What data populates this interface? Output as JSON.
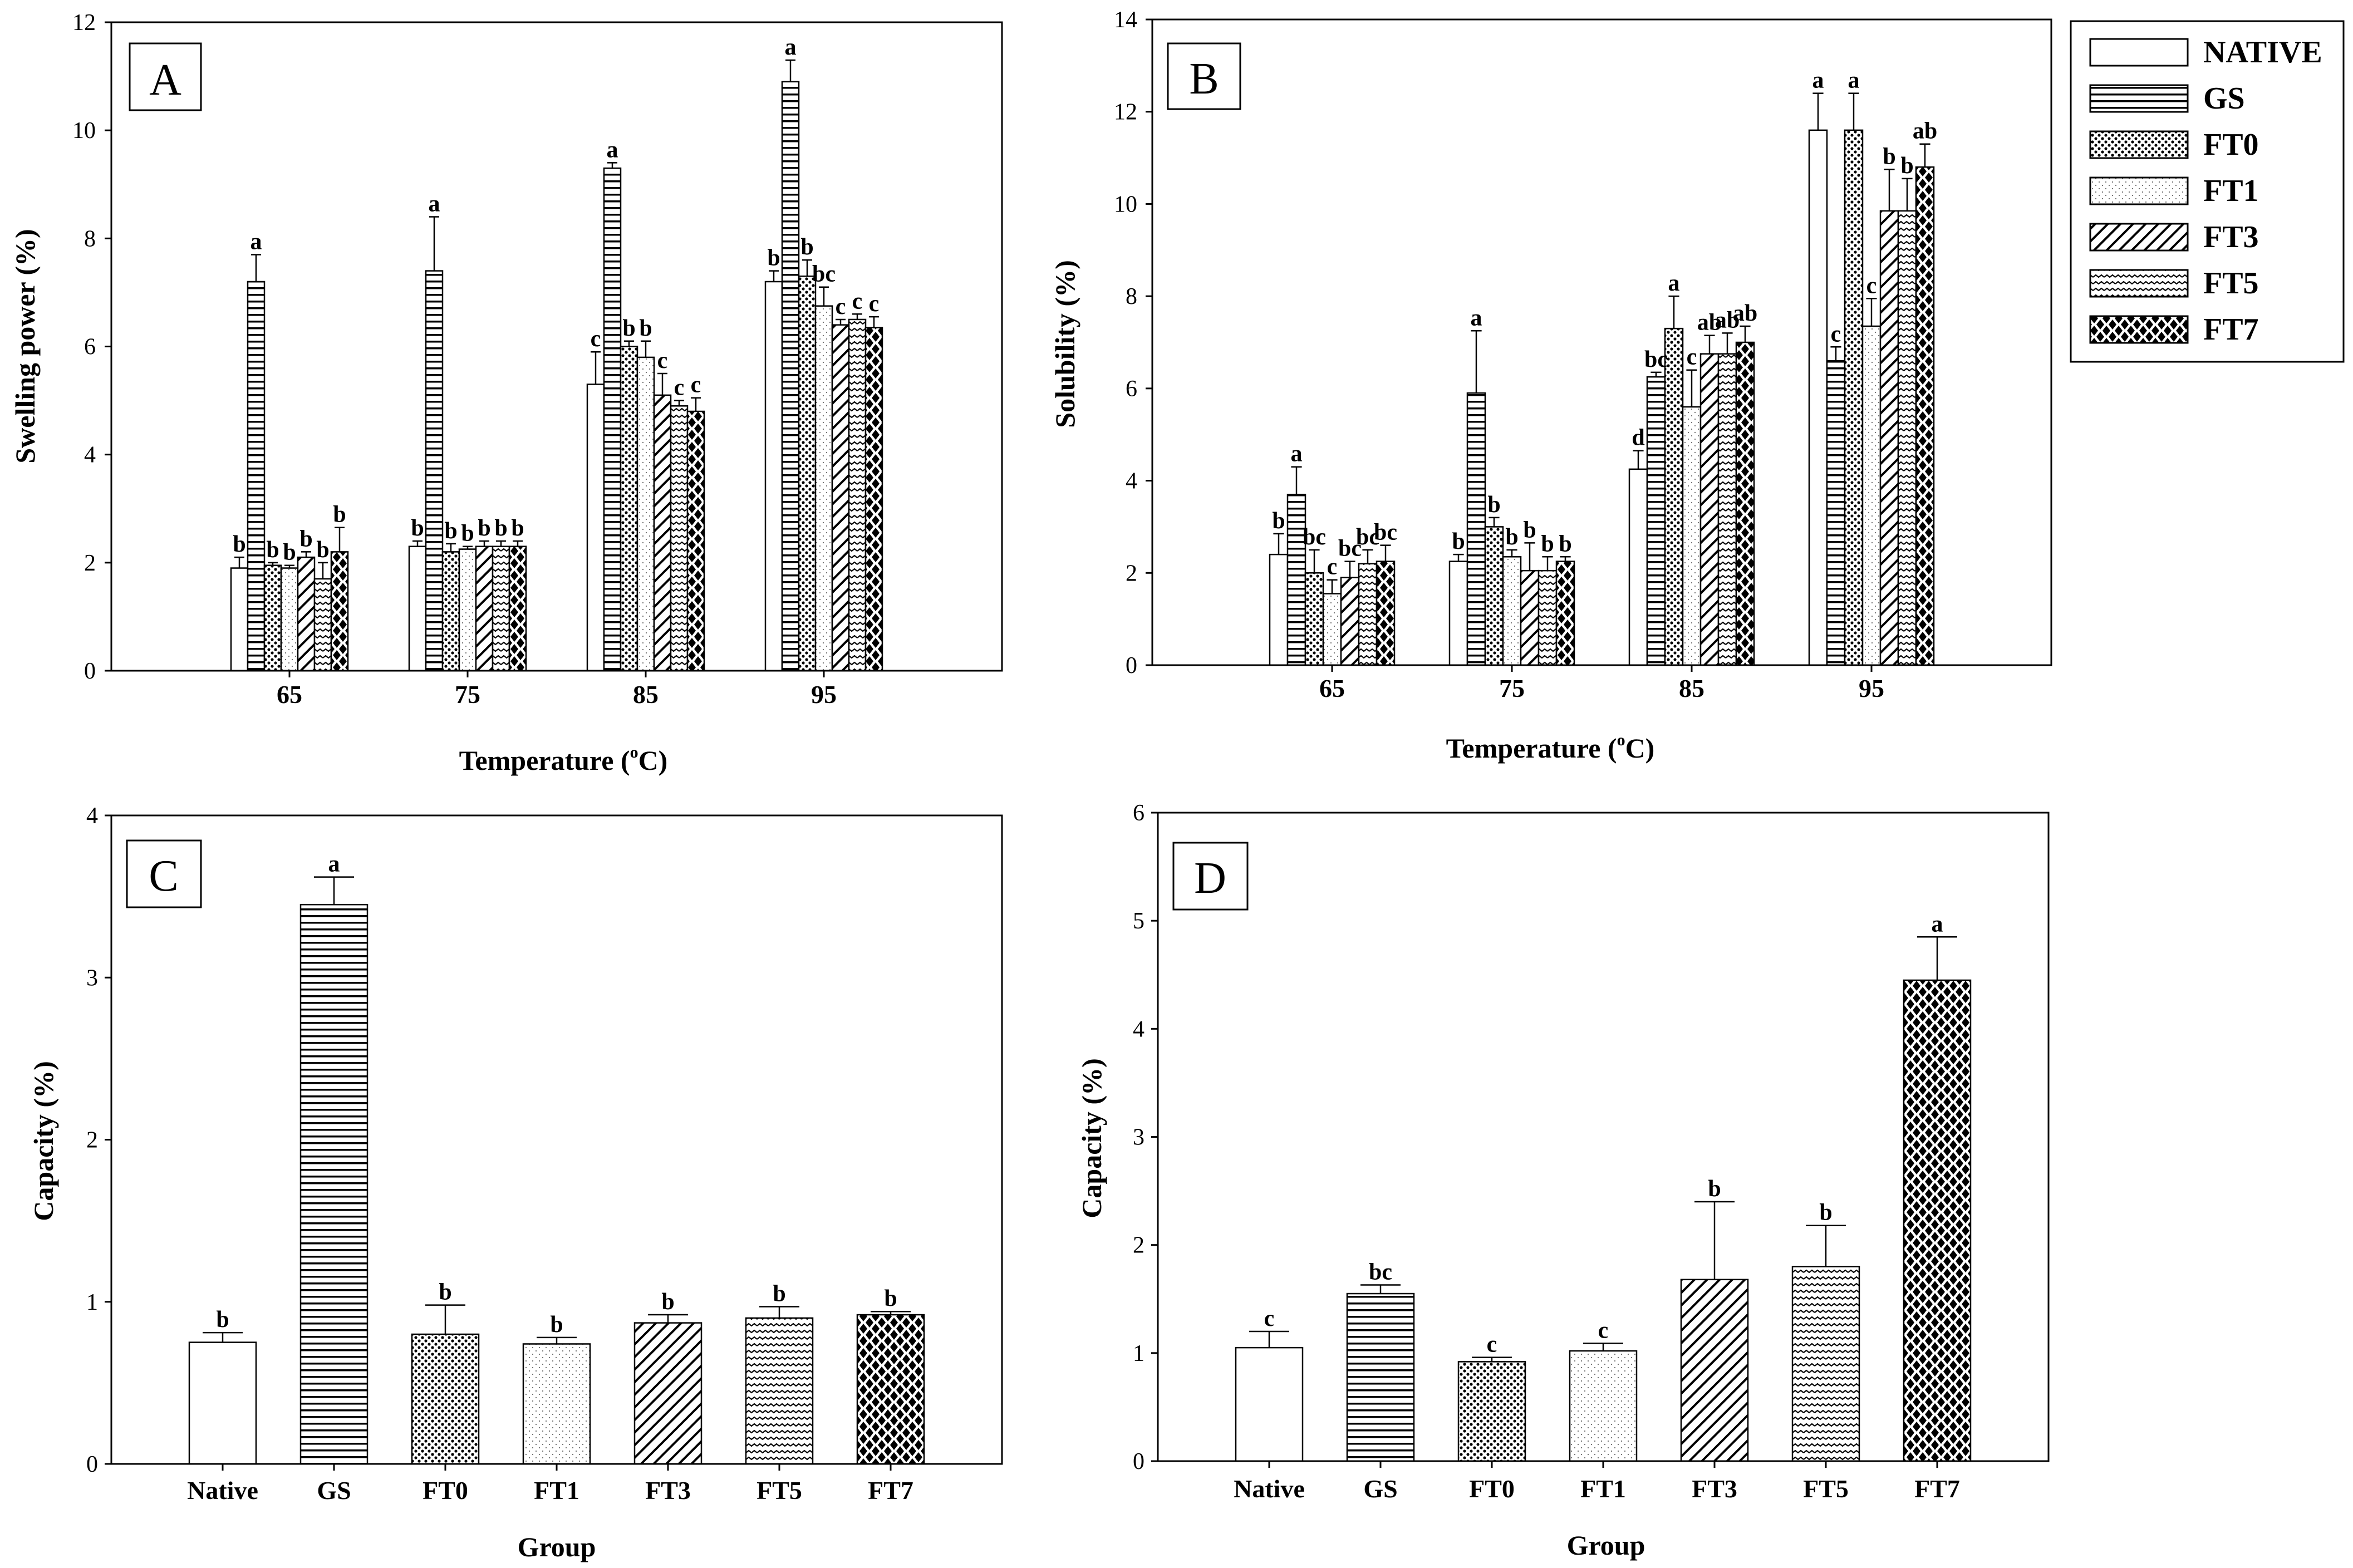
{
  "series": [
    "NATIVE",
    "GS",
    "FT0",
    "FT1",
    "FT3",
    "FT5",
    "FT7"
  ],
  "patterns": [
    "pat-native",
    "pat-gs",
    "pat-ft0",
    "pat-ft1",
    "pat-ft3",
    "pat-ft5",
    "pat-ft7"
  ],
  "colors": {
    "ink": "#000000",
    "background": "#ffffff"
  },
  "chart_data": [
    {
      "panel": "A",
      "type": "bar",
      "title": "",
      "xlabel": "Temperature (°C)",
      "xlabel_main": "Temperature (",
      "xlabel_sup": "o",
      "xlabel_end": "C)",
      "ylabel": "Swelling power (%)",
      "ylim": [
        0,
        12
      ],
      "yticks": [
        "0",
        "2",
        "4",
        "6",
        "8",
        "10",
        "12"
      ],
      "xlim": [
        55,
        105
      ],
      "categories": [
        "65",
        "75",
        "85",
        "95"
      ],
      "x": [
        65,
        75,
        85,
        95
      ],
      "series": [
        {
          "name": "NATIVE",
          "values": [
            1.9,
            2.3,
            5.3,
            7.2
          ],
          "errors": [
            0.2,
            0.1,
            0.6,
            0.2
          ],
          "labels": [
            "b",
            "b",
            "c",
            "b"
          ]
        },
        {
          "name": "GS",
          "values": [
            7.2,
            7.4,
            9.3,
            10.9
          ],
          "errors": [
            0.5,
            1.0,
            0.1,
            0.4
          ],
          "labels": [
            "a",
            "a",
            "a",
            "a"
          ]
        },
        {
          "name": "FT0",
          "values": [
            1.95,
            2.2,
            6.0,
            7.3
          ],
          "errors": [
            0.05,
            0.15,
            0.1,
            0.3
          ],
          "labels": [
            "b",
            "b",
            "b",
            "b"
          ]
        },
        {
          "name": "FT1",
          "values": [
            1.9,
            2.25,
            5.8,
            6.75
          ],
          "errors": [
            0.05,
            0.05,
            0.3,
            0.35
          ],
          "labels": [
            "b",
            "b",
            "b",
            "bc"
          ]
        },
        {
          "name": "FT3",
          "values": [
            2.1,
            2.3,
            5.1,
            6.4
          ],
          "errors": [
            0.1,
            0.1,
            0.4,
            0.1
          ],
          "labels": [
            "b",
            "b",
            "c",
            "c"
          ]
        },
        {
          "name": "FT5",
          "values": [
            1.7,
            2.3,
            4.9,
            6.5
          ],
          "errors": [
            0.3,
            0.1,
            0.1,
            0.1
          ],
          "labels": [
            "b",
            "b",
            "c",
            "c"
          ]
        },
        {
          "name": "FT7",
          "values": [
            2.2,
            2.3,
            4.8,
            6.35
          ],
          "errors": [
            0.45,
            0.1,
            0.25,
            0.2
          ],
          "labels": [
            "b",
            "b",
            "c",
            "c"
          ]
        }
      ]
    },
    {
      "panel": "B",
      "type": "bar",
      "title": "",
      "xlabel": "Temperature (°C)",
      "xlabel_main": "Temperature (",
      "xlabel_sup": "o",
      "xlabel_end": "C)",
      "ylabel": "Solubility (%)",
      "ylim": [
        0,
        14
      ],
      "yticks": [
        "0",
        "2",
        "4",
        "6",
        "8",
        "10",
        "12",
        "14"
      ],
      "xlim": [
        55,
        105
      ],
      "categories": [
        "65",
        "75",
        "85",
        "95"
      ],
      "x": [
        65,
        75,
        85,
        95
      ],
      "series": [
        {
          "name": "NATIVE",
          "values": [
            2.4,
            2.25,
            4.25,
            11.6
          ],
          "errors": [
            0.45,
            0.15,
            0.4,
            0.8
          ],
          "labels": [
            "b",
            "b",
            "d",
            "a"
          ]
        },
        {
          "name": "GS",
          "values": [
            3.7,
            5.9,
            6.25,
            6.6
          ],
          "errors": [
            0.6,
            1.35,
            0.1,
            0.3
          ],
          "labels": [
            "a",
            "a",
            "bc",
            "c"
          ]
        },
        {
          "name": "FT0",
          "values": [
            2.0,
            3.0,
            7.3,
            11.6
          ],
          "errors": [
            0.5,
            0.2,
            0.7,
            0.8
          ],
          "labels": [
            "bc",
            "b",
            "a",
            "a"
          ]
        },
        {
          "name": "FT1",
          "values": [
            1.55,
            2.35,
            5.6,
            7.35
          ],
          "errors": [
            0.3,
            0.15,
            0.8,
            0.6
          ],
          "labels": [
            "c",
            "b",
            "c",
            "c"
          ]
        },
        {
          "name": "FT3",
          "values": [
            1.9,
            2.05,
            6.75,
            9.85
          ],
          "errors": [
            0.35,
            0.6,
            0.4,
            0.9
          ],
          "labels": [
            "bc",
            "b",
            "ab",
            "b"
          ]
        },
        {
          "name": "FT5",
          "values": [
            2.2,
            2.05,
            6.75,
            9.85
          ],
          "errors": [
            0.3,
            0.3,
            0.45,
            0.7
          ],
          "labels": [
            "bc",
            "b",
            "ab",
            "b"
          ]
        },
        {
          "name": "FT7",
          "values": [
            2.25,
            2.25,
            7.0,
            10.8
          ],
          "errors": [
            0.35,
            0.1,
            0.35,
            0.5
          ],
          "labels": [
            "bc",
            "b",
            "ab",
            "ab"
          ]
        }
      ]
    },
    {
      "panel": "C",
      "type": "bar",
      "title": "",
      "xlabel": "Group",
      "ylabel": "Capacity (%)",
      "ylim": [
        0,
        4
      ],
      "yticks": [
        "0",
        "1",
        "2",
        "3",
        "4"
      ],
      "categories": [
        "Native",
        "GS",
        "FT0",
        "FT1",
        "FT3",
        "FT5",
        "FT7"
      ],
      "values": [
        0.75,
        3.45,
        0.8,
        0.74,
        0.87,
        0.9,
        0.92
      ],
      "errors": [
        0.06,
        0.17,
        0.18,
        0.04,
        0.05,
        0.07,
        0.02
      ],
      "labels": [
        "b",
        "a",
        "b",
        "b",
        "b",
        "b",
        "b"
      ]
    },
    {
      "panel": "D",
      "type": "bar",
      "title": "",
      "xlabel": "Group",
      "ylabel": "Capacity (%)",
      "ylim": [
        0,
        6
      ],
      "yticks": [
        "0",
        "1",
        "2",
        "3",
        "4",
        "5",
        "6"
      ],
      "categories": [
        "Native",
        "GS",
        "FT0",
        "FT1",
        "FT3",
        "FT5",
        "FT7"
      ],
      "values": [
        1.05,
        1.55,
        0.92,
        1.02,
        1.68,
        1.8,
        4.45
      ],
      "errors": [
        0.15,
        0.08,
        0.04,
        0.07,
        0.72,
        0.38,
        0.4
      ],
      "labels": [
        "c",
        "bc",
        "c",
        "c",
        "b",
        "b",
        "a"
      ]
    }
  ]
}
